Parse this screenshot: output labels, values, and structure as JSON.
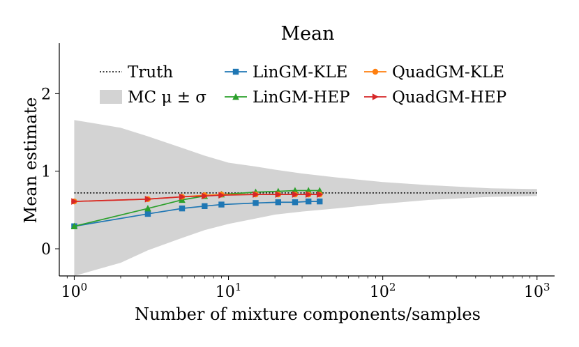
{
  "chart_data": {
    "type": "line",
    "title": "Mean",
    "xlabel": "Number of mixture components/samples",
    "ylabel": "Mean estimate",
    "xscale": "log",
    "xlim": [
      0.8,
      1300
    ],
    "ylim": [
      -0.35,
      2.65
    ],
    "grid": false,
    "legend_position": "upper-left",
    "x_ticks": [
      {
        "value": 1,
        "base": "10",
        "exp": "0"
      },
      {
        "value": 10,
        "base": "10",
        "exp": "1"
      },
      {
        "value": 100,
        "base": "10",
        "exp": "2"
      },
      {
        "value": 1000,
        "base": "10",
        "exp": "3"
      }
    ],
    "y_ticks": [
      {
        "value": 0,
        "label": "0"
      },
      {
        "value": 1,
        "label": "1"
      },
      {
        "value": 2,
        "label": "2"
      }
    ],
    "truth": {
      "name": "Truth",
      "value": 0.72,
      "color": "#000000"
    },
    "mc_band": {
      "name": "MC μ ± σ",
      "color": "#d3d3d3",
      "x": [
        1,
        2,
        3,
        5,
        7,
        10,
        15,
        20,
        30,
        50,
        100,
        200,
        500,
        1000
      ],
      "upper": [
        1.66,
        1.56,
        1.45,
        1.3,
        1.2,
        1.11,
        1.06,
        1.02,
        0.97,
        0.92,
        0.86,
        0.82,
        0.78,
        0.77
      ],
      "lower": [
        -0.35,
        -0.18,
        -0.02,
        0.14,
        0.24,
        0.32,
        0.39,
        0.44,
        0.48,
        0.52,
        0.58,
        0.63,
        0.67,
        0.68
      ]
    },
    "series": [
      {
        "name": "LinGM-KLE",
        "color": "#1f77b4",
        "marker": "square",
        "x": [
          1,
          3,
          5,
          7,
          9,
          15,
          21,
          27,
          33,
          39
        ],
        "values": [
          0.29,
          0.45,
          0.52,
          0.55,
          0.57,
          0.59,
          0.6,
          0.6,
          0.61,
          0.61
        ]
      },
      {
        "name": "LinGM-HEP",
        "color": "#2ca02c",
        "marker": "triangle-up",
        "x": [
          1,
          3,
          5,
          7,
          9,
          15,
          21,
          27,
          33,
          39
        ],
        "values": [
          0.29,
          0.52,
          0.63,
          0.68,
          0.7,
          0.73,
          0.74,
          0.75,
          0.75,
          0.75
        ]
      },
      {
        "name": "QuadGM-KLE",
        "color": "#ff7f0e",
        "marker": "circle",
        "x": [
          1,
          3,
          5,
          7,
          9,
          15,
          21,
          27,
          33,
          39
        ],
        "values": [
          0.61,
          0.64,
          0.67,
          0.69,
          0.7,
          0.7,
          0.7,
          0.7,
          0.7,
          0.7
        ]
      },
      {
        "name": "QuadGM-HEP",
        "color": "#d62728",
        "marker": "triangle-right",
        "x": [
          1,
          3,
          5,
          7,
          9,
          15,
          21,
          27,
          33,
          39
        ],
        "values": [
          0.61,
          0.64,
          0.67,
          0.68,
          0.69,
          0.7,
          0.7,
          0.7,
          0.7,
          0.7
        ]
      }
    ]
  }
}
